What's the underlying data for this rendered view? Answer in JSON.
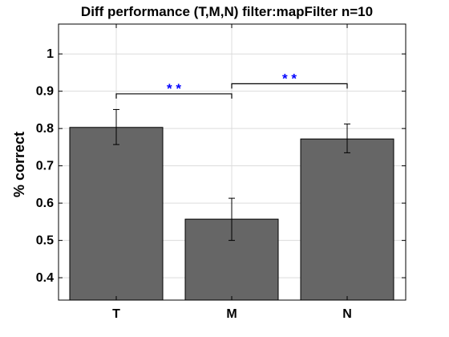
{
  "chart_data": {
    "type": "bar",
    "title": "Diff performance (T,M,N) filter:mapFilter n=10",
    "xlabel": "",
    "ylabel": "% correct",
    "categories": [
      "T",
      "M",
      "N"
    ],
    "values": [
      0.803,
      0.557,
      0.772
    ],
    "error_low": [
      0.757,
      0.5,
      0.735
    ],
    "error_high": [
      0.851,
      0.613,
      0.812
    ],
    "ylim": [
      0.34,
      1.08
    ],
    "yticks": [
      0.4,
      0.5,
      0.6,
      0.7,
      0.8,
      0.9,
      1
    ],
    "ytick_labels": [
      "0.4",
      "0.5",
      "0.6",
      "0.7",
      "0.8",
      "0.9",
      "1"
    ],
    "grid": true,
    "bar_color": "#666666",
    "significance": [
      {
        "from": 0,
        "to": 1,
        "y": 0.893,
        "label": "* *",
        "color": "#0000ff"
      },
      {
        "from": 1,
        "to": 2,
        "y": 0.92,
        "label": "* *",
        "color": "#0000ff"
      }
    ]
  }
}
